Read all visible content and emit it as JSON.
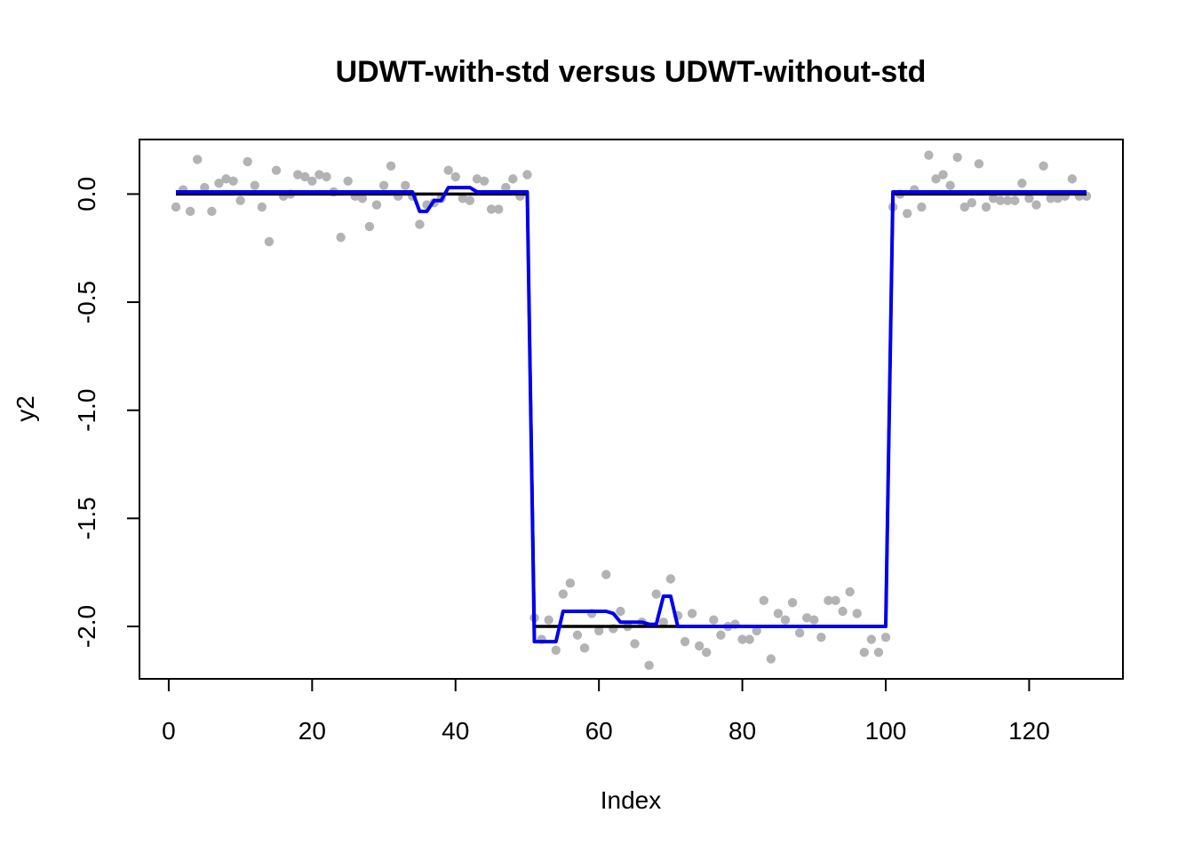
{
  "chart_data": {
    "type": "scatter",
    "title": "UDWT-with-std versus UDWT-without-std",
    "xlabel": "Index",
    "ylabel": "y2",
    "xlim": [
      1,
      128
    ],
    "ylim": [
      -2.15,
      0.16
    ],
    "x_ticks": [
      0,
      20,
      40,
      60,
      80,
      100,
      120
    ],
    "x_tick_labels": [
      "0",
      "20",
      "40",
      "60",
      "80",
      "100",
      "120"
    ],
    "y_ticks": [
      0.0,
      -0.5,
      -1.0,
      -1.5,
      -2.0
    ],
    "y_tick_labels": [
      "0.0",
      "-0.5",
      "-1.0",
      "-1.5",
      "-2.0"
    ],
    "grid": false,
    "colors": {
      "points": "#b3b3b3",
      "true_signal": "#000000",
      "estimate": "#0000ee"
    },
    "series": [
      {
        "kind": "points",
        "x": [
          1,
          2,
          3,
          4,
          5,
          6,
          7,
          8,
          9,
          10,
          11,
          12,
          13,
          14,
          15,
          16,
          17,
          18,
          19,
          20,
          21,
          22,
          23,
          24,
          25,
          26,
          27,
          28,
          29,
          30,
          31,
          32,
          33,
          34,
          35,
          36,
          37,
          38,
          39,
          40,
          41,
          42,
          43,
          44,
          45,
          46,
          47,
          48,
          49,
          50,
          51,
          52,
          53,
          54,
          55,
          56,
          57,
          58,
          59,
          60,
          61,
          62,
          63,
          64,
          65,
          66,
          67,
          68,
          69,
          70,
          71,
          72,
          73,
          74,
          75,
          76,
          77,
          78,
          79,
          80,
          81,
          82,
          83,
          84,
          85,
          86,
          87,
          88,
          89,
          90,
          91,
          92,
          93,
          94,
          95,
          96,
          97,
          98,
          99,
          100,
          101,
          102,
          103,
          104,
          105,
          106,
          107,
          108,
          109,
          110,
          111,
          112,
          113,
          114,
          115,
          116,
          117,
          118,
          119,
          120,
          121,
          122,
          123,
          124,
          125,
          126,
          127,
          128
        ],
        "values": [
          -0.06,
          0.02,
          -0.08,
          0.16,
          0.03,
          -0.08,
          0.05,
          0.07,
          0.06,
          -0.03,
          0.15,
          0.04,
          -0.06,
          -0.22,
          0.11,
          -0.01,
          0.0,
          0.09,
          0.08,
          0.06,
          0.09,
          0.08,
          0.01,
          -0.2,
          0.06,
          -0.01,
          -0.02,
          -0.15,
          -0.05,
          0.04,
          0.13,
          -0.01,
          0.04,
          -0.01,
          -0.14,
          -0.05,
          -0.04,
          -0.02,
          0.11,
          0.08,
          -0.02,
          -0.03,
          0.07,
          0.06,
          -0.07,
          -0.07,
          0.03,
          0.07,
          -0.01,
          0.09,
          -1.96,
          -2.06,
          -1.97,
          -2.11,
          -1.85,
          -1.8,
          -2.04,
          -2.1,
          -1.94,
          -2.02,
          -1.76,
          -2.01,
          -1.93,
          -2.0,
          -2.08,
          -1.98,
          -2.18,
          -1.85,
          -1.98,
          -1.78,
          -1.95,
          -2.07,
          -1.94,
          -2.09,
          -2.12,
          -1.97,
          -2.04,
          -2.0,
          -1.99,
          -2.06,
          -2.06,
          -2.02,
          -1.88,
          -2.15,
          -1.94,
          -1.97,
          -1.89,
          -2.03,
          -1.96,
          -1.97,
          -2.05,
          -1.88,
          -1.88,
          -1.93,
          -1.84,
          -1.94,
          -2.12,
          -2.06,
          -2.12,
          -2.05,
          -0.06,
          0.0,
          -0.09,
          0.02,
          -0.06,
          0.18,
          0.07,
          0.09,
          0.04,
          0.17,
          -0.06,
          -0.04,
          0.14,
          -0.06,
          -0.02,
          -0.03,
          -0.03,
          -0.03,
          0.05,
          -0.02,
          -0.05,
          0.13,
          -0.02,
          -0.02,
          -0.01,
          0.07,
          -0.01,
          -0.01
        ]
      },
      {
        "kind": "line",
        "name": "",
        "x": [
          1,
          50,
          51,
          100,
          101,
          128
        ],
        "values": [
          0,
          0,
          -2,
          -2,
          0,
          0
        ]
      },
      {
        "kind": "line",
        "name": "",
        "x": [
          1,
          34,
          35,
          36,
          37,
          38,
          39,
          40,
          41,
          42,
          43,
          50,
          51,
          52,
          53,
          54,
          55,
          56,
          57,
          58,
          59,
          60,
          61,
          62,
          63,
          64,
          65,
          66,
          67,
          68,
          69,
          70,
          71,
          72,
          100,
          101,
          128
        ],
        "values": [
          0.01,
          0.01,
          -0.08,
          -0.08,
          -0.03,
          -0.03,
          0.03,
          0.03,
          0.03,
          0.03,
          0.01,
          0.01,
          -2.07,
          -2.07,
          -2.07,
          -2.07,
          -1.93,
          -1.93,
          -1.93,
          -1.93,
          -1.93,
          -1.93,
          -1.93,
          -1.94,
          -1.98,
          -1.98,
          -1.98,
          -1.98,
          -1.99,
          -1.99,
          -1.86,
          -1.86,
          -2.0,
          -2.0,
          -2.0,
          0.01,
          0.01
        ]
      }
    ]
  }
}
